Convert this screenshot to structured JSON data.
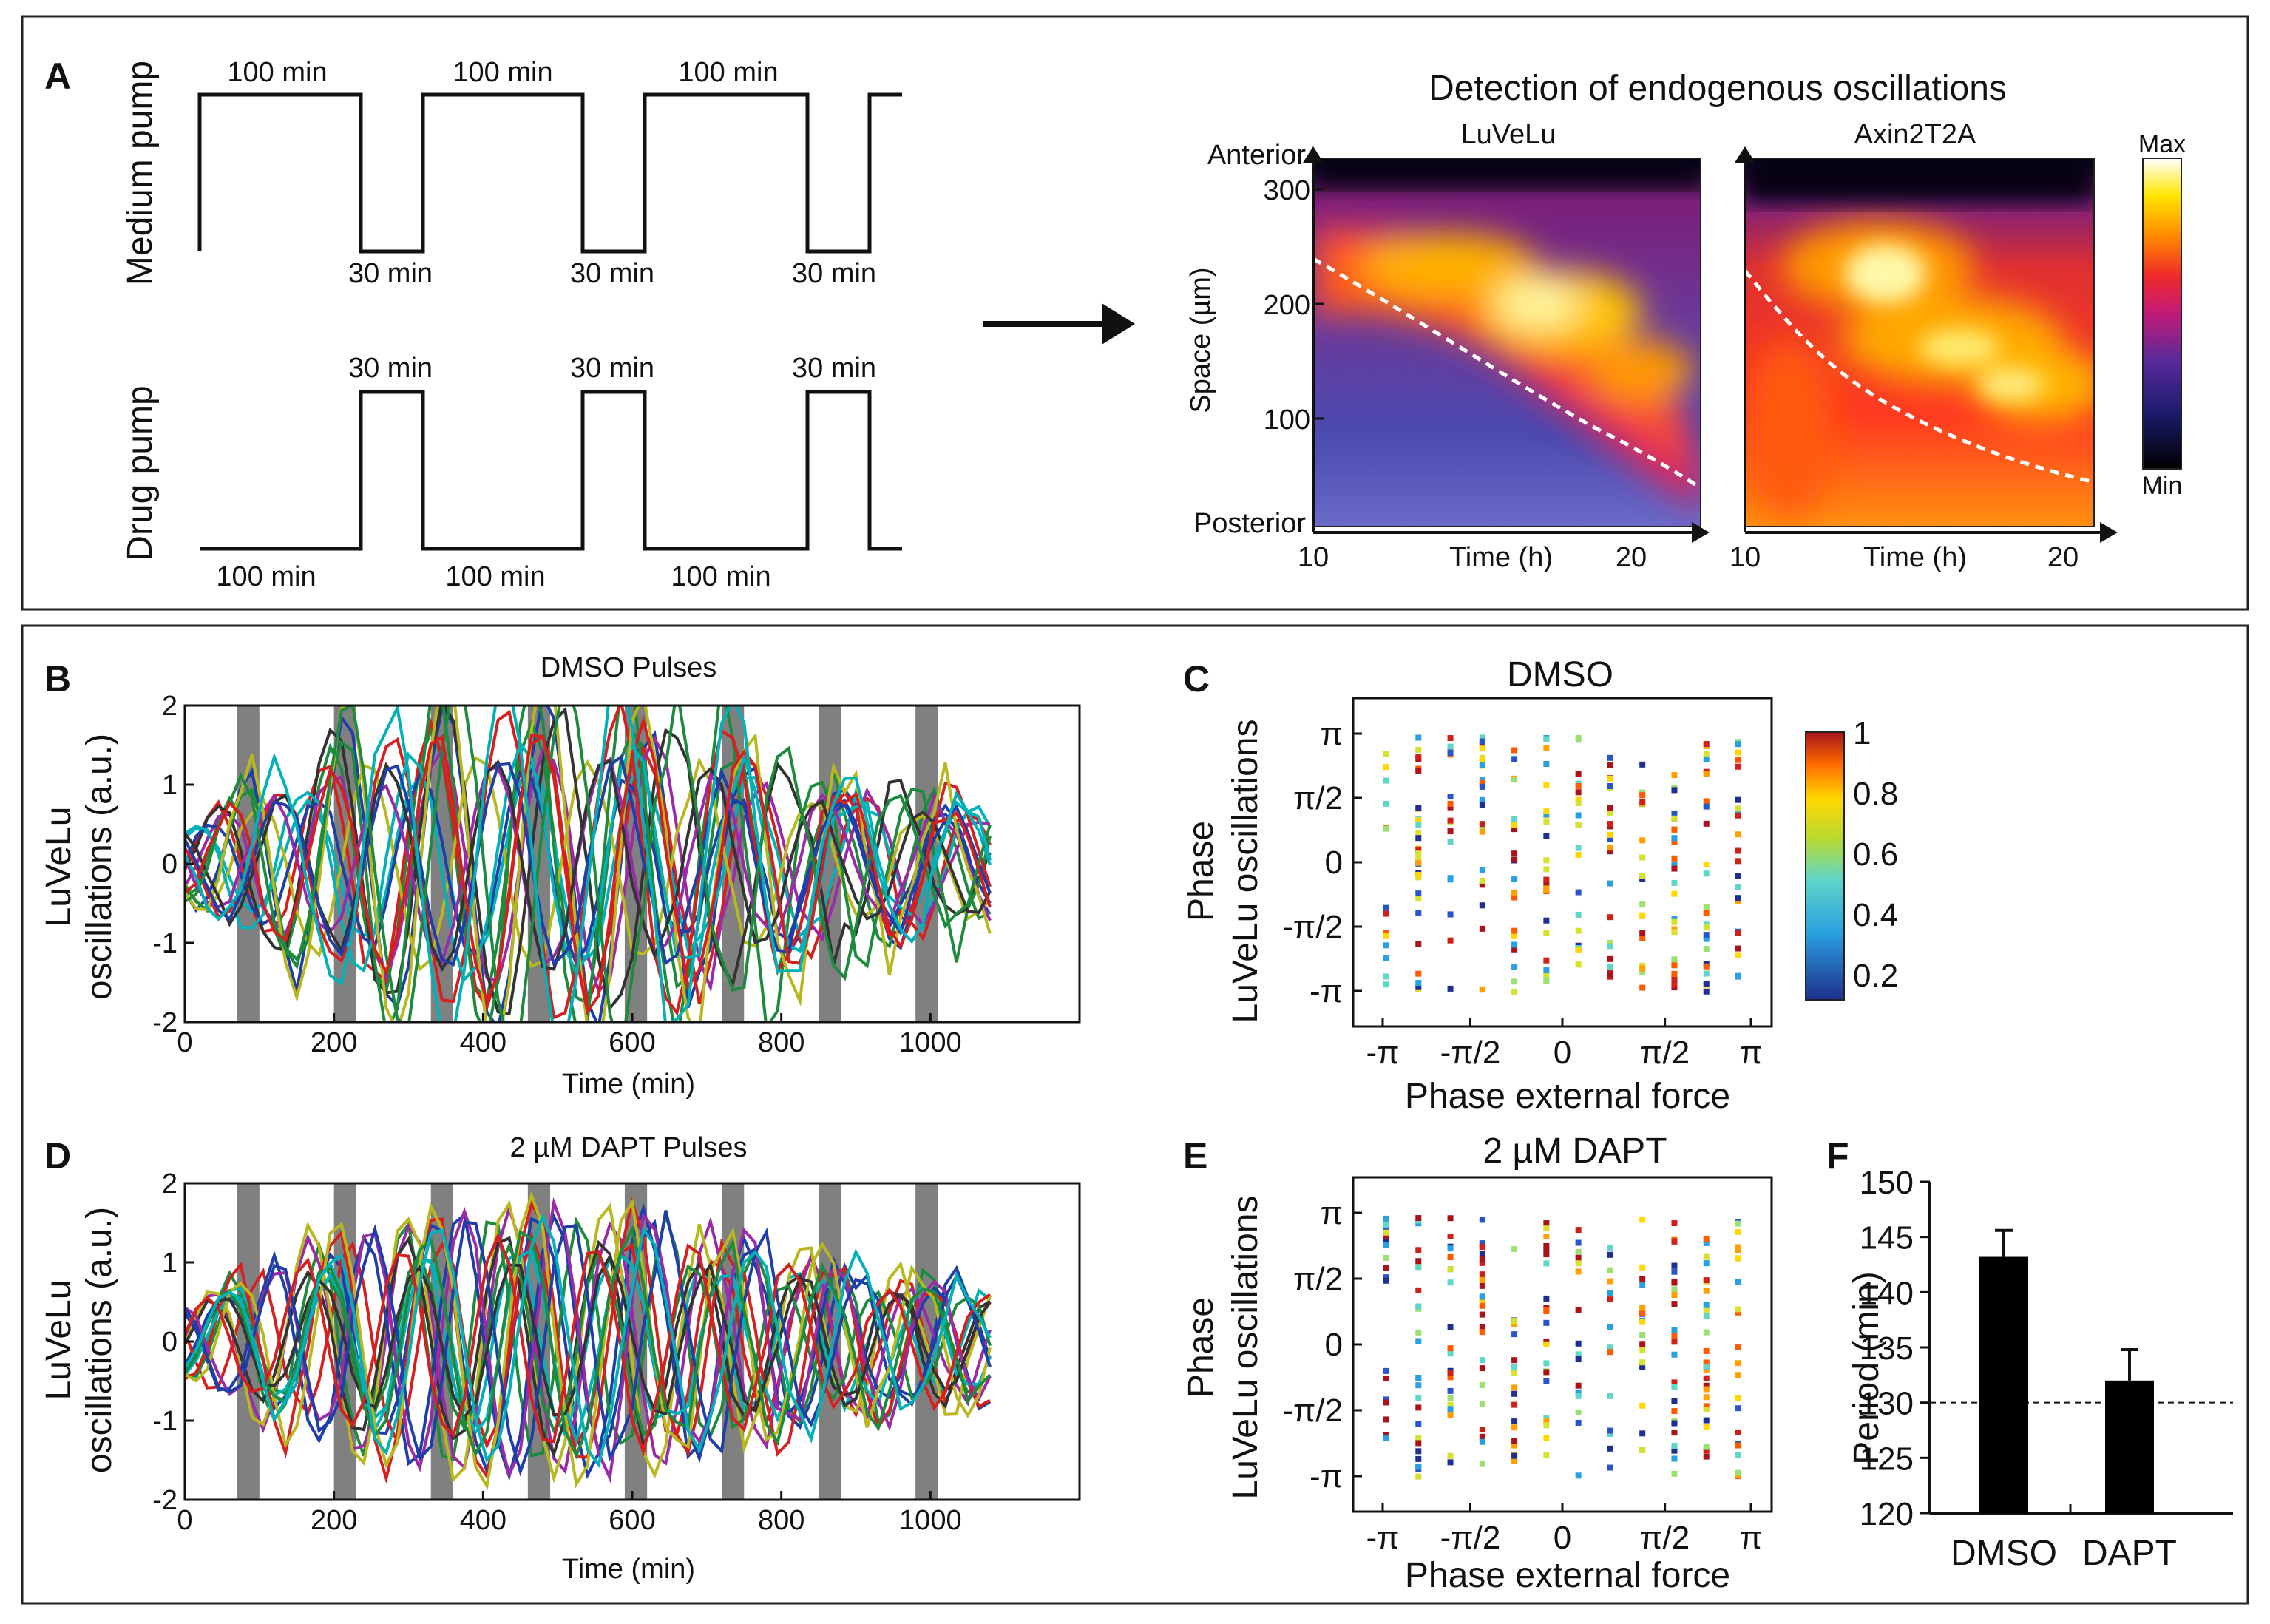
{
  "panels": {
    "A": {
      "letter": "A",
      "medium_label": "Medium pump",
      "drug_label": "Drug pump",
      "medium_high": [
        "100 min",
        "100 min",
        "100 min"
      ],
      "medium_low": [
        "30 min",
        "30 min",
        "30 min"
      ],
      "drug_high": [
        "30 min",
        "30 min",
        "30 min"
      ],
      "drug_low": [
        "100 min",
        "100 min",
        "100 min"
      ],
      "heatmap_title": "Detection of endogenous oscillations",
      "heat1_title": "LuVeLu",
      "heat2_title": "Axin2T2A",
      "anterior": "Anterior",
      "posterior": "Posterior",
      "ylabel": "Space (µm)",
      "y_ticks": [
        "300",
        "200",
        "100"
      ],
      "xlabel": "Time (h)",
      "x_ticks": [
        "10",
        "20"
      ],
      "colorbar_max": "Max",
      "colorbar_min": "Min"
    },
    "B": {
      "letter": "B",
      "title": "DMSO Pulses"
    },
    "C": {
      "letter": "C",
      "title": "DMSO"
    },
    "D": {
      "letter": "D",
      "title": "2 µM DAPT Pulses"
    },
    "E": {
      "letter": "E",
      "title": "2 µM DAPT"
    },
    "F": {
      "letter": "F"
    }
  },
  "colors": {
    "traces": [
      "#1f3ea8",
      "#1e8a3e",
      "#d62020",
      "#00b2b8",
      "#9b2aa8",
      "#b8b81e",
      "#333333"
    ],
    "pulse": "#808080",
    "bar": "#000000"
  },
  "chart_data": [
    {
      "id": "A-pumps",
      "type": "line",
      "series": [
        {
          "name": "Medium pump",
          "segments": [
            "100 min",
            "30 min",
            "100 min",
            "30 min",
            "100 min",
            "30 min"
          ]
        },
        {
          "name": "Drug pump",
          "segments": [
            "100 min",
            "30 min",
            "100 min",
            "30 min",
            "100 min",
            "30 min"
          ]
        }
      ]
    },
    {
      "id": "A-heatmaps",
      "type": "heatmap",
      "panels": [
        "LuVeLu",
        "Axin2T2A"
      ],
      "xlabel": "Time (h)",
      "ylabel": "Space (µm)",
      "xlim": [
        10,
        21.5
      ],
      "ylim": [
        0,
        320
      ],
      "x_ticks": [
        10,
        20
      ],
      "y_ticks": [
        100,
        200,
        300
      ],
      "colorbar": [
        "Min",
        "Max"
      ]
    },
    {
      "id": "B",
      "type": "line",
      "title": "DMSO Pulses",
      "xlabel": "Time (min)",
      "ylabel": "LuVeLu oscillations (a.u.)",
      "xlim": [
        0,
        1200
      ],
      "ylim": [
        -2,
        2
      ],
      "x_ticks": [
        0,
        200,
        400,
        600,
        800,
        1000
      ],
      "y_ticks": [
        -2,
        -1,
        0,
        1,
        2
      ],
      "pulses_start": [
        70,
        200,
        330,
        460,
        590,
        720,
        850,
        980
      ],
      "pulse_width": 30,
      "n_traces": 18,
      "period_min": 140
    },
    {
      "id": "C",
      "type": "scatter",
      "title": "DMSO",
      "xlabel": "Phase external force",
      "ylabel": "Phase LuVeLu oscillations",
      "x_ticks": [
        "-π",
        "-π/2",
        "0",
        "π/2",
        "π"
      ],
      "y_ticks": [
        "π",
        "π/2",
        "0",
        "-π/2",
        "-π"
      ],
      "colorbar_ticks": [
        "1",
        "0.8",
        "0.6",
        "0.4",
        "0.2"
      ],
      "columns": 12
    },
    {
      "id": "D",
      "type": "line",
      "title": "2 µM DAPT Pulses",
      "xlabel": "Time (min)",
      "ylabel": "LuVeLu oscillations (a.u.)",
      "xlim": [
        0,
        1200
      ],
      "ylim": [
        -2,
        2
      ],
      "x_ticks": [
        0,
        200,
        400,
        600,
        800,
        1000
      ],
      "y_ticks": [
        -2,
        -1,
        0,
        1,
        2
      ],
      "pulses_start": [
        70,
        200,
        330,
        460,
        590,
        720,
        850,
        980
      ],
      "pulse_width": 30,
      "n_traces": 18,
      "period_min": 130
    },
    {
      "id": "E",
      "type": "scatter",
      "title": "2 µM DAPT",
      "xlabel": "Phase external force",
      "ylabel": "Phase LuVeLu oscillations",
      "x_ticks": [
        "-π",
        "-π/2",
        "0",
        "π/2",
        "π"
      ],
      "y_ticks": [
        "π",
        "π/2",
        "0",
        "-π/2",
        "-π"
      ],
      "columns": 12
    },
    {
      "id": "F",
      "type": "bar",
      "categories": [
        "DMSO",
        "DAPT"
      ],
      "values": [
        143.2,
        132.0
      ],
      "errors": [
        2.4,
        2.8
      ],
      "ylabel": "Period (min)",
      "ylim": [
        120,
        150
      ],
      "y_ticks": [
        120,
        125,
        130,
        135,
        140,
        145,
        150
      ],
      "reference_line": 130
    }
  ]
}
